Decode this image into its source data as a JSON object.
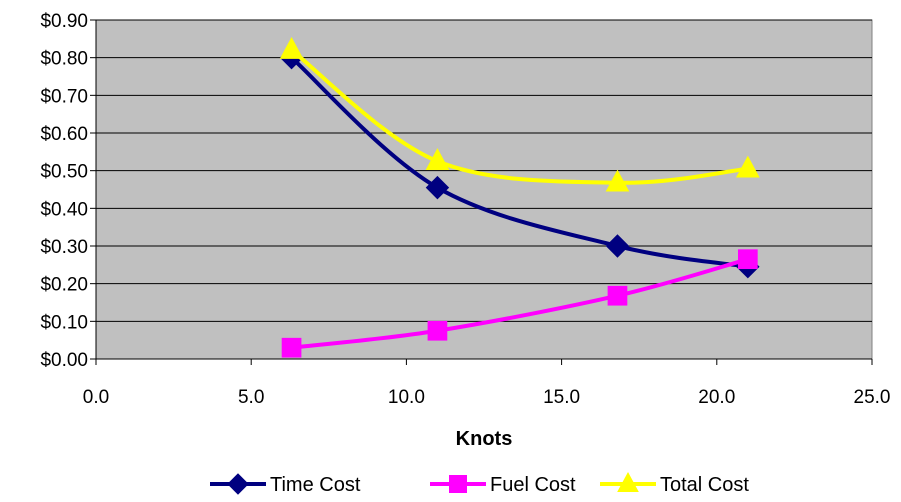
{
  "chart_data": {
    "type": "scatter",
    "title": "",
    "xlabel": "Knots",
    "ylabel": "",
    "xlim": [
      0,
      25
    ],
    "ylim": [
      0,
      0.9
    ],
    "x_ticks": [
      "0.0",
      "5.0",
      "10.0",
      "15.0",
      "20.0",
      "25.0"
    ],
    "y_ticks": [
      "$0.00",
      "$0.10",
      "$0.20",
      "$0.30",
      "$0.40",
      "$0.50",
      "$0.60",
      "$0.70",
      "$0.80",
      "$0.90"
    ],
    "grid": true,
    "plot_background": "#c0c0c0",
    "legend_position": "bottom",
    "series": [
      {
        "name": "Time Cost",
        "color": "#000080",
        "marker": "diamond",
        "points": [
          {
            "x": 6.3,
            "y": 0.8
          },
          {
            "x": 11.0,
            "y": 0.455
          },
          {
            "x": 16.8,
            "y": 0.3
          },
          {
            "x": 21.0,
            "y": 0.245
          }
        ]
      },
      {
        "name": "Fuel Cost",
        "color": "#ff00ff",
        "marker": "square",
        "points": [
          {
            "x": 6.3,
            "y": 0.03
          },
          {
            "x": 11.0,
            "y": 0.075
          },
          {
            "x": 16.8,
            "y": 0.168
          },
          {
            "x": 21.0,
            "y": 0.265
          }
        ]
      },
      {
        "name": "Total Cost",
        "color": "#ffff00",
        "marker": "triangle",
        "points": [
          {
            "x": 6.3,
            "y": 0.82
          },
          {
            "x": 11.0,
            "y": 0.525
          },
          {
            "x": 16.8,
            "y": 0.468
          },
          {
            "x": 21.0,
            "y": 0.505
          }
        ]
      }
    ]
  }
}
